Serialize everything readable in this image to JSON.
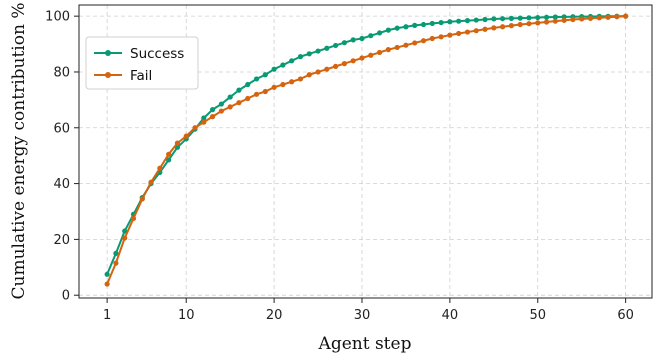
{
  "chart_data": {
    "type": "line",
    "xlabel": "Agent step",
    "ylabel": "Cumulative energy contribution %",
    "xlim": [
      -2.2,
      63
    ],
    "ylim": [
      -1,
      104
    ],
    "xticks": [
      1,
      10,
      20,
      30,
      40,
      50,
      60
    ],
    "yticks": [
      0,
      20,
      40,
      60,
      80,
      100
    ],
    "grid": true,
    "legend_position": "top-left",
    "x": [
      1,
      2,
      3,
      4,
      5,
      6,
      7,
      8,
      9,
      10,
      11,
      12,
      13,
      14,
      15,
      16,
      17,
      18,
      19,
      20,
      21,
      22,
      23,
      24,
      25,
      26,
      27,
      28,
      29,
      30,
      31,
      32,
      33,
      34,
      35,
      36,
      37,
      38,
      39,
      40,
      41,
      42,
      43,
      44,
      45,
      46,
      47,
      48,
      49,
      50,
      51,
      52,
      53,
      54,
      55,
      56,
      57,
      58,
      59,
      60
    ],
    "series": [
      {
        "name": "Success",
        "color": "#0a9a73",
        "values": [
          7.5,
          15,
          23,
          29,
          35,
          40,
          44,
          48.5,
          53,
          56,
          59.5,
          63.5,
          66.5,
          68.5,
          71,
          73.5,
          75.5,
          77.5,
          79,
          81,
          82.5,
          84,
          85.5,
          86.5,
          87.5,
          88.5,
          89.5,
          90.5,
          91.5,
          92,
          93,
          94,
          95,
          95.7,
          96.2,
          96.7,
          97,
          97.4,
          97.7,
          98,
          98.2,
          98.4,
          98.6,
          98.8,
          99,
          99.1,
          99.2,
          99.3,
          99.4,
          99.5,
          99.6,
          99.7,
          99.75,
          99.8,
          99.85,
          99.9,
          99.93,
          99.95,
          99.98,
          100
        ]
      },
      {
        "name": "Fail",
        "color": "#d4640f",
        "values": [
          4,
          11.5,
          20.5,
          27.5,
          34.5,
          40.5,
          45.5,
          50.5,
          54.5,
          57,
          60,
          62,
          64,
          66,
          67.5,
          69,
          70.5,
          72,
          73,
          74.5,
          75.5,
          76.5,
          77.5,
          79,
          80,
          81,
          82,
          83,
          84,
          85,
          86,
          87,
          88,
          88.8,
          89.6,
          90.4,
          91.2,
          92,
          92.6,
          93.2,
          93.8,
          94.3,
          94.8,
          95.3,
          95.8,
          96.2,
          96.6,
          97,
          97.3,
          97.6,
          97.9,
          98.2,
          98.5,
          98.8,
          99,
          99.2,
          99.4,
          99.6,
          99.8,
          100
        ]
      }
    ]
  }
}
